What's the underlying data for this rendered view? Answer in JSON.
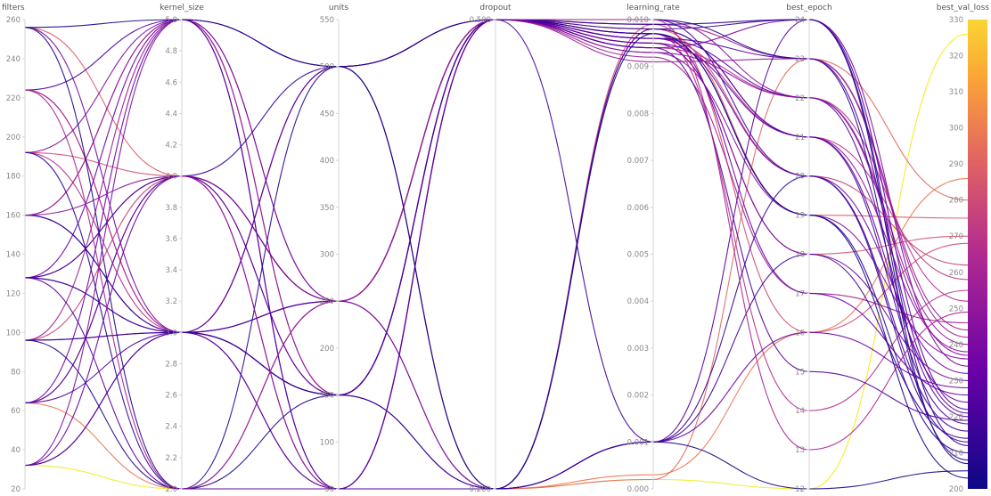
{
  "chart_data": {
    "type": "parallel_coordinates",
    "title": "",
    "color_by": "best_val_loss",
    "colorscale": [
      "#0d0887",
      "#6a00a8",
      "#b12a90",
      "#e16462",
      "#fca636",
      "#f0f921"
    ],
    "axes": [
      {
        "name": "filters",
        "range": [
          20,
          260
        ],
        "ticks": [
          20,
          40,
          60,
          80,
          100,
          120,
          140,
          160,
          180,
          200,
          220,
          240,
          260
        ],
        "tick_labels": [
          "20",
          "40",
          "60",
          "80",
          "100",
          "120",
          "140",
          "160",
          "180",
          "200",
          "220",
          "240",
          "260"
        ]
      },
      {
        "name": "kernel_size",
        "range": [
          2.0,
          5.0
        ],
        "ticks": [
          2.0,
          2.2,
          2.4,
          2.6,
          2.8,
          3.0,
          3.2,
          3.4,
          3.6,
          3.8,
          4.0,
          4.2,
          4.4,
          4.6,
          4.8,
          5.0
        ],
        "tick_labels": [
          "2.0",
          "2.2",
          "2.4",
          "2.6",
          "2.8",
          "3.0",
          "3.2",
          "3.4",
          "3.6",
          "3.8",
          "4.0",
          "4.2",
          "4.4",
          "4.6",
          "4.8",
          "5.0"
        ]
      },
      {
        "name": "units",
        "range": [
          50,
          550
        ],
        "ticks": [
          50,
          100,
          150,
          200,
          250,
          300,
          350,
          400,
          450,
          500,
          550
        ],
        "tick_labels": [
          "50",
          "100",
          "150",
          "200",
          "250",
          "300",
          "350",
          "400",
          "450",
          "500",
          "550"
        ]
      },
      {
        "name": "dropout",
        "range": [
          0.2,
          0.5
        ],
        "ticks": [
          0.2,
          0.5
        ],
        "tick_labels": [
          "0.200",
          "0.500"
        ]
      },
      {
        "name": "learning_rate",
        "range": [
          0.0,
          0.01
        ],
        "ticks": [
          0,
          0.001,
          0.002,
          0.003,
          0.004,
          0.005,
          0.006,
          0.007,
          0.008,
          0.009,
          0.01
        ],
        "tick_labels": [
          "0.000",
          "0.001",
          "0.002",
          "0.003",
          "0.004",
          "0.005",
          "0.006",
          "0.007",
          "0.008",
          "0.009",
          "0.010"
        ]
      },
      {
        "name": "best_epoch",
        "range": [
          12,
          24
        ],
        "ticks": [
          12,
          13,
          14,
          15,
          16,
          17,
          18,
          19,
          20,
          21,
          22,
          23,
          24
        ],
        "tick_labels": [
          "12",
          "13",
          "14",
          "15",
          "16",
          "17",
          "18",
          "19",
          "20",
          "21",
          "22",
          "23",
          "24"
        ]
      },
      {
        "name": "best_val_loss",
        "range": [
          200,
          330
        ],
        "ticks": [
          200,
          210,
          220,
          230,
          240,
          250,
          260,
          270,
          280,
          290,
          300,
          310,
          320,
          330
        ],
        "tick_labels": [
          "200",
          "210",
          "220",
          "230",
          "240",
          "250",
          "260",
          "270",
          "280",
          "290",
          "300",
          "310",
          "320",
          "330"
        ]
      }
    ],
    "runs": [
      [
        32,
        2.0,
        50,
        0.2,
        0.0002,
        12,
        326
      ],
      [
        64,
        2.0,
        50,
        0.2,
        0.0003,
        16,
        286
      ],
      [
        256,
        4.0,
        250,
        0.5,
        0.0098,
        19,
        275
      ],
      [
        192,
        4.0,
        250,
        0.5,
        0.0095,
        18,
        270
      ],
      [
        224,
        3.0,
        500,
        0.2,
        0.0002,
        23,
        280
      ],
      [
        96,
        4.0,
        250,
        0.5,
        0.0097,
        20,
        262
      ],
      [
        128,
        4.0,
        150,
        0.5,
        0.0096,
        21,
        258
      ],
      [
        160,
        5.0,
        250,
        0.2,
        0.0099,
        16,
        268
      ],
      [
        192,
        3.0,
        150,
        0.5,
        0.0094,
        22,
        252
      ],
      [
        224,
        3.0,
        250,
        0.5,
        0.0092,
        17,
        246
      ],
      [
        32,
        3.0,
        150,
        0.5,
        0.0091,
        23,
        242
      ],
      [
        64,
        4.0,
        50,
        0.5,
        0.0097,
        14,
        255
      ],
      [
        96,
        3.0,
        50,
        0.2,
        0.0098,
        21,
        238
      ],
      [
        128,
        3.0,
        500,
        0.5,
        0.0093,
        19,
        236
      ],
      [
        160,
        5.0,
        150,
        0.5,
        0.01,
        22,
        240
      ],
      [
        192,
        5.0,
        500,
        0.5,
        0.0096,
        20,
        232
      ],
      [
        256,
        3.0,
        250,
        0.5,
        0.0095,
        18,
        230
      ],
      [
        32,
        5.0,
        500,
        0.5,
        0.0094,
        24,
        234
      ],
      [
        64,
        5.0,
        250,
        0.2,
        0.001,
        16,
        228
      ],
      [
        96,
        5.0,
        150,
        0.5,
        0.0099,
        23,
        244
      ],
      [
        128,
        5.0,
        50,
        0.5,
        0.0097,
        17,
        226
      ],
      [
        160,
        3.0,
        500,
        0.2,
        0.001,
        24,
        222
      ],
      [
        224,
        5.0,
        50,
        0.2,
        0.0098,
        21,
        218
      ],
      [
        32,
        3.0,
        250,
        0.5,
        0.01,
        20,
        216
      ],
      [
        64,
        3.0,
        50,
        0.5,
        0.0096,
        22,
        220
      ],
      [
        96,
        3.0,
        150,
        0.5,
        0.001,
        18,
        214
      ],
      [
        128,
        4.0,
        500,
        0.5,
        0.0098,
        24,
        212
      ],
      [
        160,
        3.0,
        150,
        0.5,
        0.0097,
        19,
        210
      ],
      [
        192,
        2.0,
        500,
        0.5,
        0.01,
        23,
        208
      ],
      [
        256,
        2.0,
        150,
        0.2,
        0.001,
        12,
        205
      ],
      [
        32,
        4.0,
        250,
        0.5,
        0.0095,
        21,
        224
      ],
      [
        64,
        4.0,
        150,
        0.5,
        0.0094,
        15,
        219
      ],
      [
        96,
        2.0,
        250,
        0.5,
        0.0099,
        24,
        207
      ],
      [
        128,
        3.0,
        150,
        0.2,
        0.001,
        20,
        213
      ],
      [
        160,
        4.0,
        50,
        0.5,
        0.0093,
        22,
        237
      ],
      [
        224,
        2.0,
        250,
        0.5,
        0.01,
        13,
        249
      ],
      [
        128,
        2.0,
        50,
        0.5,
        0.0096,
        23,
        221
      ],
      [
        256,
        5.0,
        500,
        0.2,
        0.0097,
        19,
        203
      ]
    ]
  }
}
